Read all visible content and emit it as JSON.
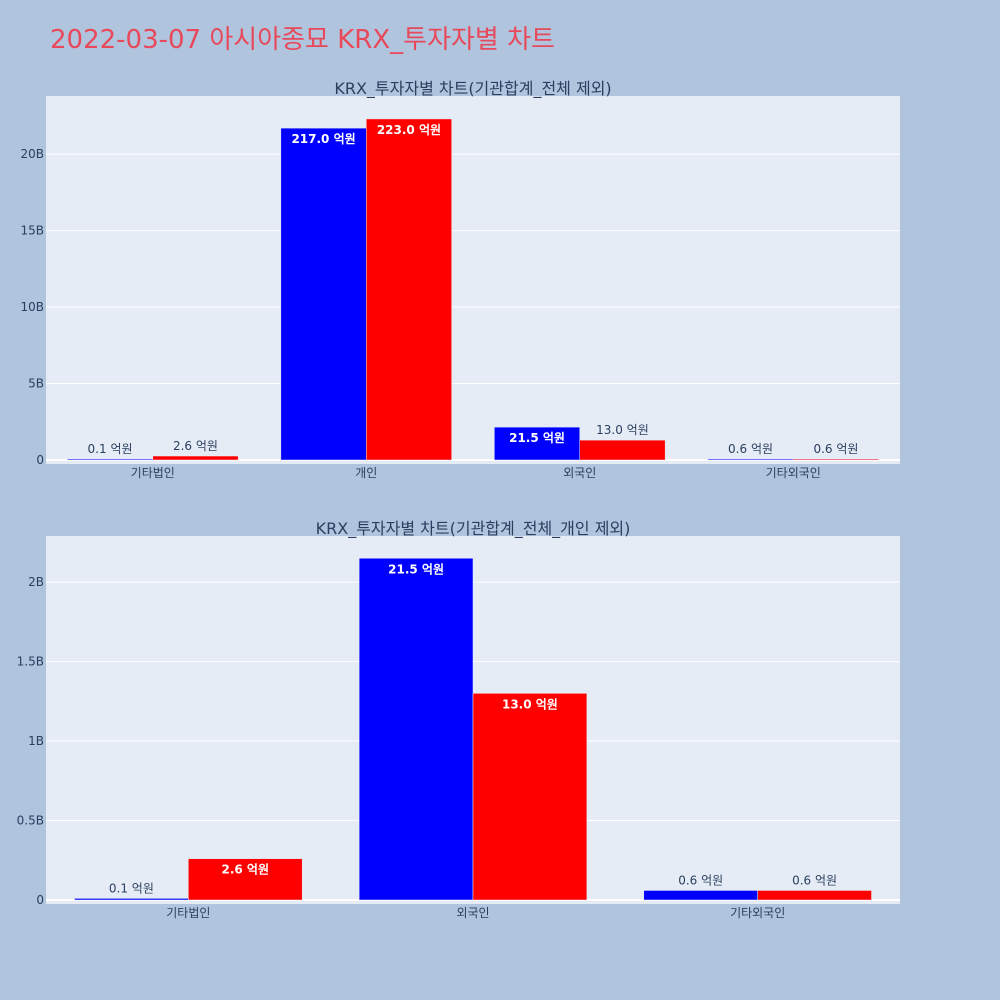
{
  "page": {
    "title": "2022-03-07 아시아종묘 KRX_투자자별 차트"
  },
  "colors": {
    "page_bg": "#b0c4de",
    "plot_bg": "#e5ecf6",
    "title": "#e8495a",
    "text": "#2a3f5f",
    "series_blue": "#0000ff",
    "series_red": "#ff0000"
  },
  "chart_data": [
    {
      "type": "bar",
      "title": "KRX_투자자별 차트(기관합계_전체 제외)",
      "categories": [
        "기타법인",
        "개인",
        "외국인",
        "기타외국인"
      ],
      "series": [
        {
          "color": "#0000ff",
          "values": [
            10000000,
            21700000000,
            2150000000,
            60000000
          ],
          "labels": [
            "0.1 억원",
            "217.0 억원",
            "21.5 억원",
            "0.6 억원"
          ]
        },
        {
          "color": "#ff0000",
          "values": [
            260000000,
            22300000000,
            1300000000,
            60000000
          ],
          "labels": [
            "2.6 억원",
            "223.0 억원",
            "13.0 억원",
            "0.6 억원"
          ]
        }
      ],
      "ylim": [
        0,
        23800000000
      ],
      "yticks": [
        0,
        5000000000,
        10000000000,
        15000000000,
        20000000000
      ],
      "ytick_labels": [
        "0",
        "5B",
        "10B",
        "15B",
        "20B"
      ],
      "grid": true,
      "legend": "none"
    },
    {
      "type": "bar",
      "title": "KRX_투자자별 차트(기관합계_전체_개인 제외)",
      "categories": [
        "기타법인",
        "외국인",
        "기타외국인"
      ],
      "series": [
        {
          "color": "#0000ff",
          "values": [
            10000000,
            2150000000,
            60000000
          ],
          "labels": [
            "0.1 억원",
            "21.5 억원",
            "0.6 억원"
          ]
        },
        {
          "color": "#ff0000",
          "values": [
            260000000,
            1300000000,
            60000000
          ],
          "labels": [
            "2.6 억원",
            "13.0 억원",
            "0.6 억원"
          ]
        }
      ],
      "ylim": [
        0,
        2290000000
      ],
      "yticks": [
        0,
        500000000,
        1000000000,
        1500000000,
        2000000000
      ],
      "ytick_labels": [
        "0",
        "0.5B",
        "1B",
        "1.5B",
        "2B"
      ],
      "grid": true,
      "legend": "none"
    }
  ]
}
